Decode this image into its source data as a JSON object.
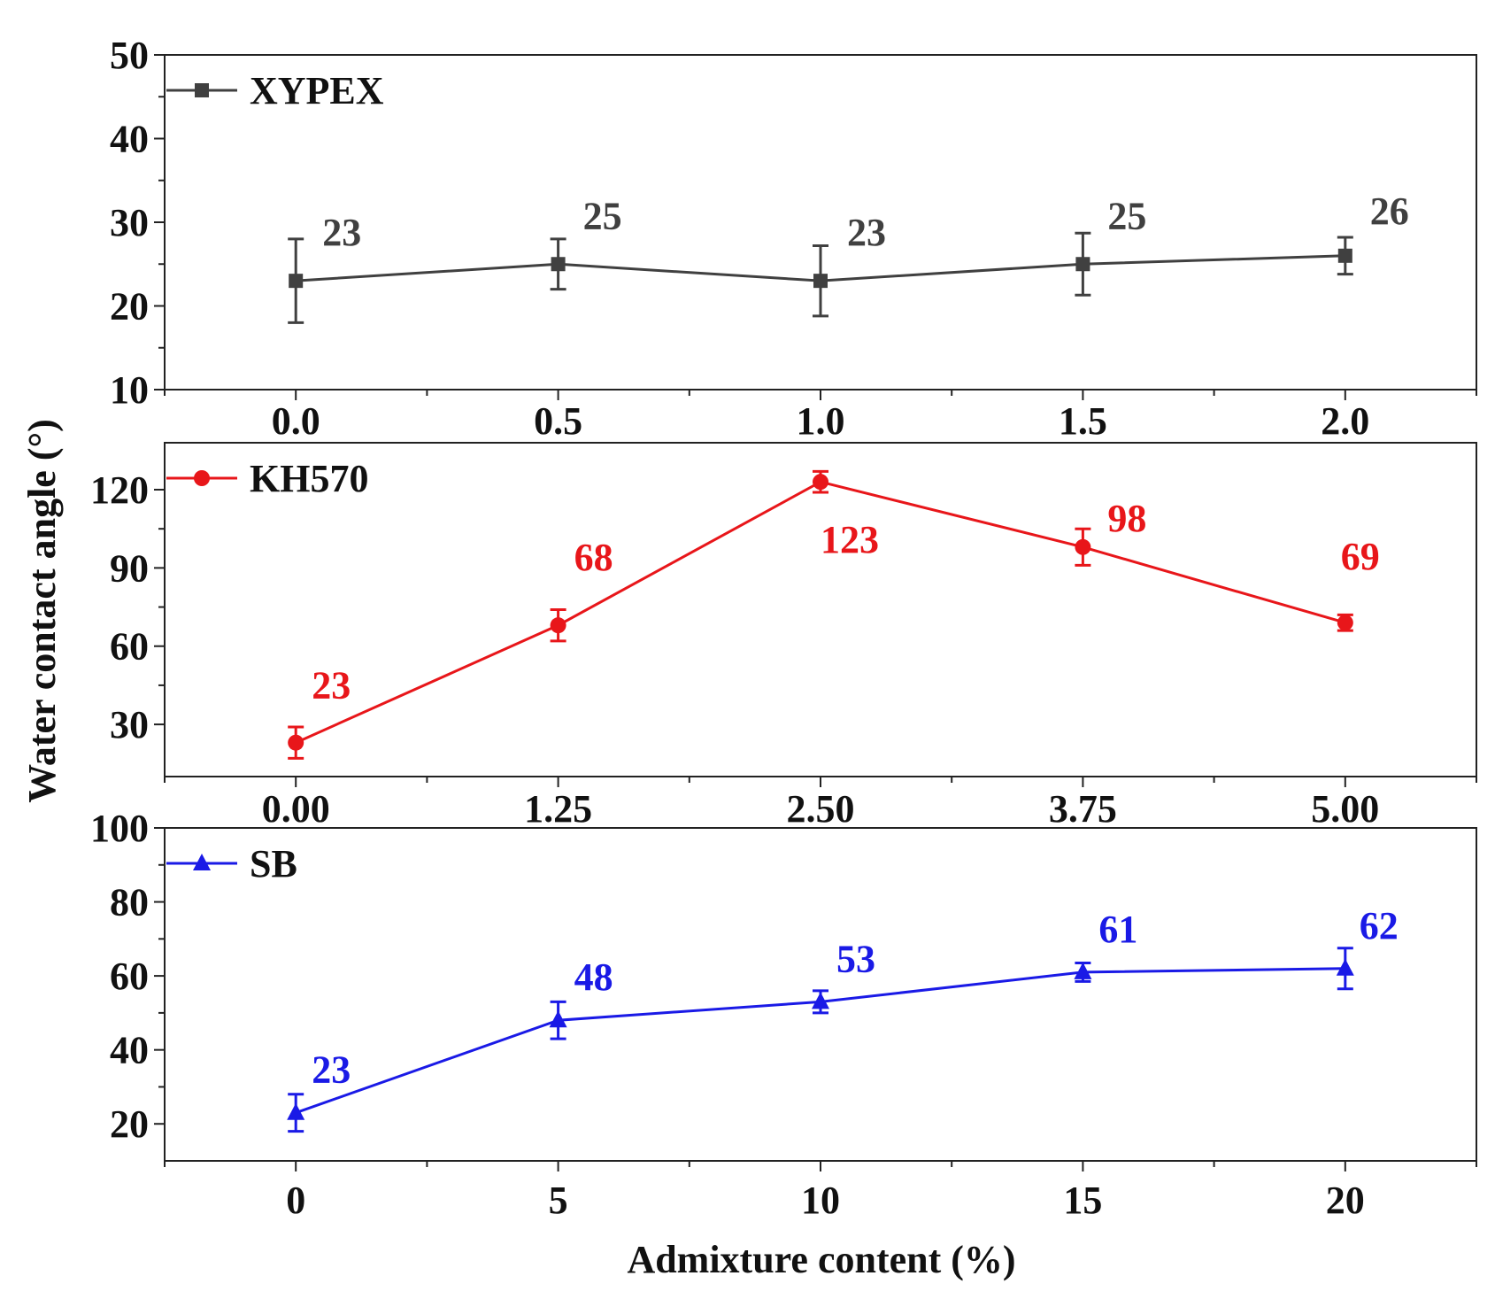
{
  "chart_data": {
    "type": "line",
    "ylabel": "Water contact angle (°)",
    "xlabel": "Admixture content (%)",
    "panels": [
      {
        "name": "XYPEX",
        "color": "#404040",
        "marker": "square",
        "x": [
          0.0,
          0.5,
          1.0,
          1.5,
          2.0
        ],
        "xticks": [
          "0.0",
          "0.5",
          "1.0",
          "1.5",
          "2.0"
        ],
        "xlim": [
          -0.25,
          2.25
        ],
        "y": [
          23,
          25,
          23,
          25,
          26
        ],
        "err": [
          5,
          3,
          4.2,
          3.7,
          2.2
        ],
        "ylim": [
          10,
          50
        ],
        "yticks": [
          "10",
          "20",
          "30",
          "40",
          "50"
        ],
        "labels": [
          "23",
          "25",
          "23",
          "25",
          "26"
        ]
      },
      {
        "name": "KH570",
        "color": "#e8161a",
        "marker": "circle",
        "x": [
          0.0,
          1.25,
          2.5,
          3.75,
          5.0
        ],
        "xticks": [
          "0.00",
          "1.25",
          "2.50",
          "3.75",
          "5.00"
        ],
        "xlim": [
          -0.625,
          5.625
        ],
        "y": [
          23,
          68,
          123,
          98,
          69
        ],
        "err": [
          6,
          6,
          4,
          7,
          3
        ],
        "ylim": [
          10,
          138
        ],
        "yticks": [
          "30",
          "60",
          "90",
          "120"
        ],
        "labels": [
          "23",
          "68",
          "123",
          "98",
          "69"
        ]
      },
      {
        "name": "SB",
        "color": "#1a1ae6",
        "marker": "triangle",
        "x": [
          0,
          5,
          10,
          15,
          20
        ],
        "xticks": [
          "0",
          "5",
          "10",
          "15",
          "20"
        ],
        "xlim": [
          -2.5,
          22.5
        ],
        "y": [
          23,
          48,
          53,
          61,
          62
        ],
        "err": [
          5,
          5,
          3,
          2.5,
          5.5
        ],
        "ylim": [
          10,
          100
        ],
        "yticks": [
          "20",
          "40",
          "60",
          "80",
          "100"
        ],
        "labels": [
          "23",
          "48",
          "53",
          "61",
          "62"
        ]
      }
    ]
  }
}
